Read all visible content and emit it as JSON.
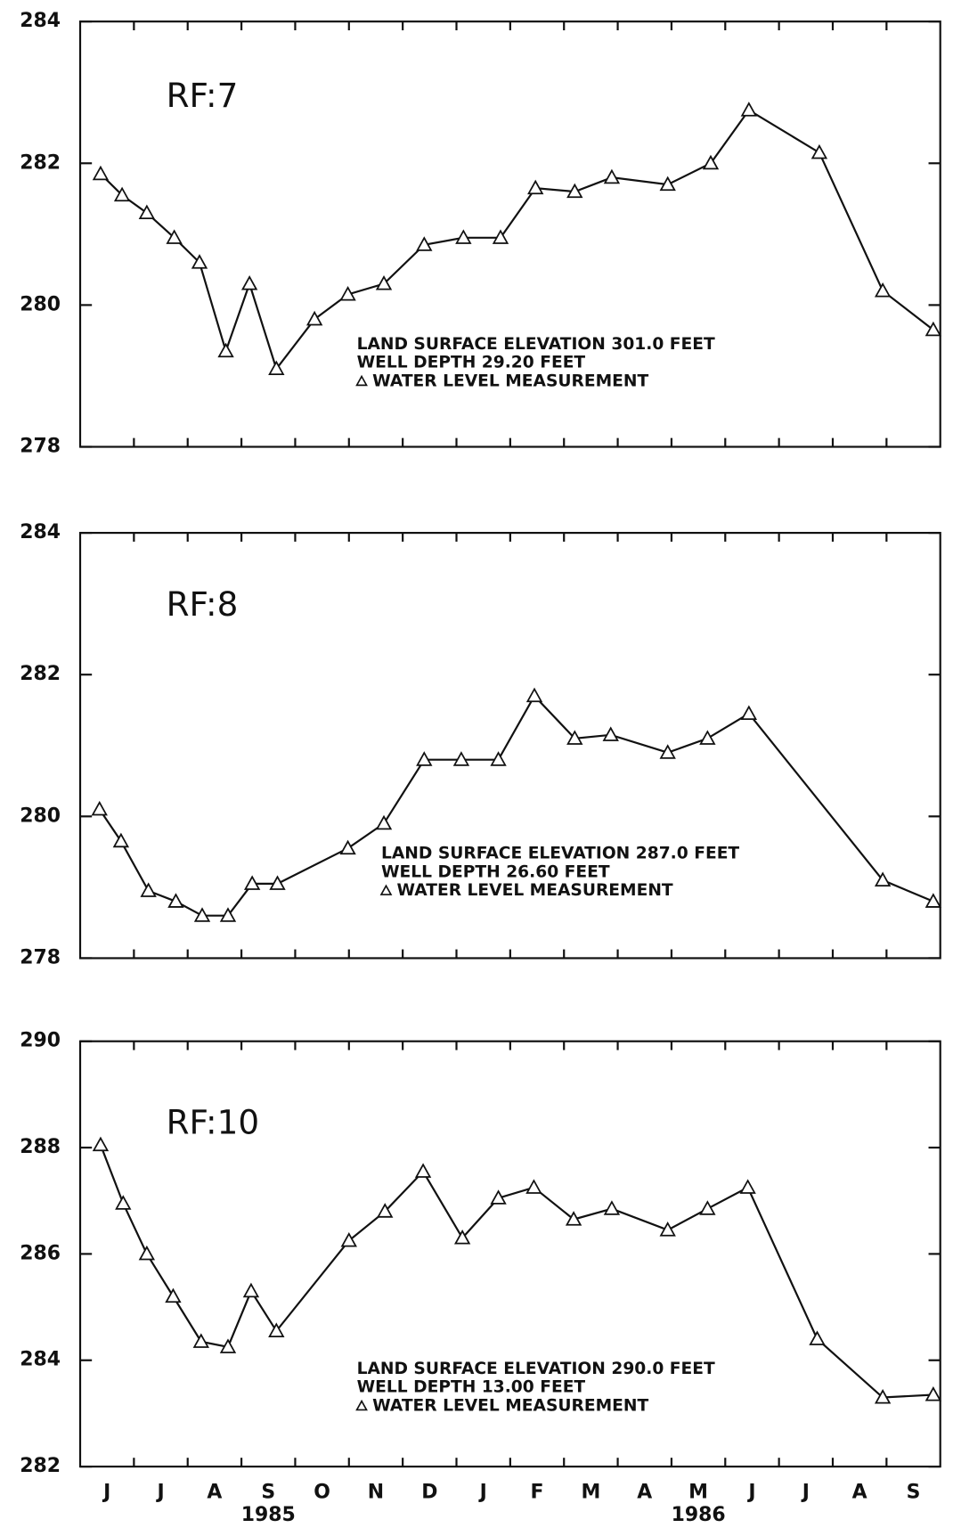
{
  "chart_data": [
    {
      "type": "line",
      "label": "RF:7",
      "annotations": [
        "LAND SURFACE ELEVATION 301.0 FEET",
        "WELL DEPTH 29.20 FEET"
      ],
      "xlim": [
        0,
        16
      ],
      "ylim": [
        278,
        284
      ],
      "yticks": [
        278,
        280,
        282,
        284
      ],
      "series": [
        {
          "name": "WATER LEVEL MEASUREMENT",
          "color": "#111111",
          "x": [
            0.38,
            0.78,
            1.24,
            1.75,
            2.22,
            2.71,
            3.15,
            3.65,
            4.36,
            4.98,
            5.65,
            6.4,
            7.13,
            7.82,
            8.47,
            9.2,
            9.89,
            10.93,
            11.73,
            12.44,
            13.75,
            14.93,
            15.87
          ],
          "values": [
            281.85,
            281.55,
            281.3,
            280.95,
            280.6,
            279.35,
            280.3,
            279.1,
            279.8,
            280.15,
            280.3,
            280.85,
            280.95,
            280.95,
            281.65,
            281.6,
            281.8,
            281.7,
            282.0,
            282.75,
            282.15,
            280.2,
            279.65
          ]
        }
      ]
    },
    {
      "type": "line",
      "label": "RF:8",
      "annotations": [
        "LAND SURFACE ELEVATION 287.0 FEET",
        "WELL DEPTH 26.60 FEET"
      ],
      "xlim": [
        0,
        16
      ],
      "ylim": [
        278,
        284
      ],
      "yticks": [
        278,
        280,
        282,
        284
      ],
      "series": [
        {
          "name": "WATER LEVEL MEASUREMENT",
          "color": "#111111",
          "x": [
            0.36,
            0.76,
            1.27,
            1.78,
            2.27,
            2.75,
            3.2,
            3.67,
            4.98,
            5.65,
            6.4,
            7.09,
            7.78,
            8.45,
            9.2,
            9.87,
            10.93,
            11.67,
            12.44,
            14.93,
            15.87
          ],
          "values": [
            280.1,
            279.65,
            278.95,
            278.8,
            278.6,
            278.6,
            279.05,
            279.05,
            279.55,
            279.9,
            280.8,
            280.8,
            280.8,
            281.7,
            281.1,
            281.15,
            280.9,
            281.1,
            281.45,
            279.1,
            278.8
          ]
        }
      ]
    },
    {
      "type": "line",
      "label": "RF:10",
      "annotations": [
        "LAND SURFACE ELEVATION 290.0 FEET",
        "WELL DEPTH 13.00 FEET"
      ],
      "xlim": [
        0,
        16
      ],
      "ylim": [
        282,
        290
      ],
      "yticks": [
        282,
        284,
        286,
        288,
        290
      ],
      "categories": [
        "J",
        "J",
        "A",
        "S",
        "O",
        "N",
        "D",
        "J",
        "F",
        "M",
        "A",
        "M",
        "J",
        "J",
        "A",
        "S"
      ],
      "year_labels": [
        "1985",
        "1986"
      ],
      "series": [
        {
          "name": "WATER LEVEL MEASUREMENT",
          "color": "#111111",
          "x": [
            0.38,
            0.8,
            1.24,
            1.73,
            2.25,
            2.75,
            3.18,
            3.65,
            5.0,
            5.67,
            6.38,
            7.11,
            7.78,
            8.44,
            9.18,
            9.89,
            10.93,
            11.67,
            12.42,
            13.71,
            14.93,
            15.87
          ],
          "values": [
            288.05,
            286.95,
            286.0,
            285.2,
            284.35,
            284.25,
            285.3,
            284.55,
            286.25,
            286.8,
            287.55,
            286.3,
            287.05,
            287.25,
            286.65,
            286.85,
            286.45,
            286.85,
            287.25,
            284.4,
            283.3,
            283.35
          ]
        }
      ]
    }
  ]
}
